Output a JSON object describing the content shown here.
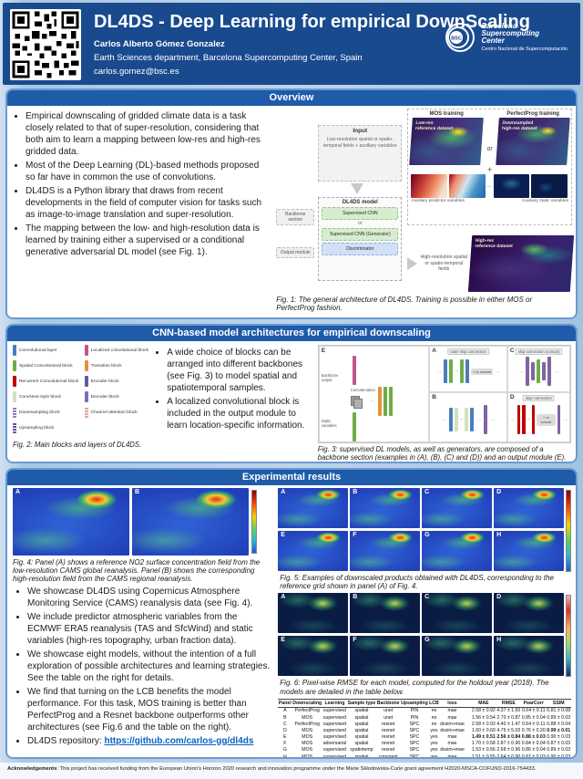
{
  "header": {
    "title": "DL4DS - Deep Learning for empirical DownScaling",
    "author": "Carlos Alberto Gómez Gonzalez",
    "affiliation": "Earth Sciences department, Barcelona Supercomputing Center, Spain",
    "email": "carlos.gomez@bsc.es",
    "logo": {
      "abbr": "BSC",
      "name_lines": "Barcelona\nSupercomputing\nCenter",
      "subtitle": "Centro Nacional de Supercomputación"
    }
  },
  "overview": {
    "title": "Overview",
    "bullets": [
      "Empirical downscaling of gridded climate data is a task closely related to that of super-resolution, considering that both aim to learn a mapping between low-res and high-res gridded data.",
      "Most of the Deep Learning (DL)-based methods proposed so far have in common the use of convolutions.",
      "DL4DS is a Python library that draws from recent developments in the field of computer vision for tasks such as image-to-image translation and super-resolution.",
      "The mapping between the low- and high-resolution data is learned by training either a supervised or a conditional generative adversarial DL model (see Fig. 1)."
    ],
    "fig1": {
      "mos_label": "MOS training",
      "pp_label": "PerfectProg training",
      "or": "or",
      "plus": "+",
      "dots": "...",
      "lowres_overlay": "Low-res reference dataset",
      "downsampled_overlay": "Downsampled high-res dataset",
      "aux_predictor": "Auxiliary predictor variables",
      "aux_static": "Auxiliary static variables",
      "input_title": "Input",
      "input_body": "Low-resolution spatial or spatio-temporal fields + auxiliary variables",
      "model_title": "DL4DS model",
      "block1": "Supervised CNN",
      "or2": "or",
      "block2": "Supervised CNN (Generator)",
      "block3": "Discriminator",
      "backbone_label": "Backbone section",
      "output_label": "Output module",
      "highres_fields": "High-resolution spatial or spatio-temporal fields",
      "highres_overlay": "High-res reference dataset",
      "caption": "Fig. 1: The general architecture of DL4DS. Training is possible in either MOS or PerfectProg fashion."
    }
  },
  "cnn": {
    "title": "CNN-based model architectures for empirical downscaling",
    "legend_left": [
      {
        "label": "Convolutional layer",
        "color": "#4a7ebb",
        "striped": false
      },
      {
        "label": "Spatial Convolutional block",
        "color": "#6fad47",
        "striped": false
      },
      {
        "label": "Recurrent Convolutional block",
        "color": "#c00000",
        "striped": false
      },
      {
        "label": "ConvNext-style block",
        "color": "#cfe2c0",
        "striped": false
      },
      {
        "label": "Downsampling block",
        "color": "#8e7cc3",
        "striped": true
      },
      {
        "label": "Upsampling block",
        "color": "#674ea7",
        "striped": true
      }
    ],
    "legend_right": [
      {
        "label": "Localized convolutional block",
        "color": "#c2548c",
        "striped": false
      },
      {
        "label": "Transition block",
        "color": "#e69138",
        "striped": false
      },
      {
        "label": "Encoder block",
        "color": "#5b5ea6",
        "striped": false
      },
      {
        "label": "Decoder block",
        "color": "#7a6fbe",
        "striped": false
      },
      {
        "label": "Channel attention block",
        "color": "#e8a0a0",
        "striped": true
      }
    ],
    "fig2_caption": "Fig. 2: Main blocks and layers of DL4DS.",
    "bullets": [
      "A wide choice of blocks can be arranged into different backbones (see Fig. 3) to model spatial and spatiotemporal samples.",
      "A localized convolutional block is included in the output module to learn location-specific information."
    ],
    "fig3": {
      "letters": [
        "A",
        "B",
        "C",
        "D",
        "E"
      ],
      "outer_skip": "outer skip connection",
      "skip_concat": "skip connection (concat)",
      "skip": "skip connection",
      "plus_or_concat": "+ or concat",
      "backbone_output": "Backbone output",
      "static_variables": "Static variables",
      "concatenation": "Concatenation",
      "caption": "Fig. 3: supervised DL models, as well as generators, are composed of a backbone section (examples in (A), (B), (C) and (D)) and an output module (E)."
    }
  },
  "experimental": {
    "title": "Experimental results",
    "fig4": {
      "panels": [
        "A",
        "B"
      ],
      "caption": "Fig. 4: Panel (A) shows a reference NO2 surface concentration field from the low-resolution CAMS global reanalysis. Panel (B) shows the corresponding high-resolution field from the CAMS regional reanalysis."
    },
    "bullets": [
      "We showcase DL4DS using Copernicus Atmosphere Monitoring Service (CAMS) reanalysis data (see Fig. 4).",
      "We include predictor atmospheric variables from the ECMWF ERA5 reanalysis (TAS and SfcWind) and static variables (high-res topography, urban fraction data).",
      "We showcase eight models, without the intention of a full exploration of possible architectures and learning strategies. See the table on the right for details.",
      "We find that turning on the LCB benefits the model performance. For this task, MOS training is better than PerfectProg and a Resnet backbone outperforms other architectures (see Fig.6 and the table on the right)."
    ],
    "repo_label": "DL4DS repository: ",
    "repo_url": "https://github.com/carlos-gg/dl4ds",
    "fig5": {
      "panels": [
        "A",
        "B",
        "C",
        "D",
        "E",
        "F",
        "G",
        "H"
      ],
      "caption": "Fig. 5: Examples of downscaled products obtained with DL4DS, corresponding to the reference grid shown in panel (A) of Fig. 4."
    },
    "fig6": {
      "panels": [
        "A",
        "B",
        "C",
        "D",
        "E",
        "F",
        "G",
        "H"
      ],
      "caption": "Fig. 6: Pixel-wise RMSE for each model, computed for the holdout year (2018). The models are detailed in the table below."
    },
    "table": {
      "columns": [
        "Panel",
        "Downscaling",
        "Learning",
        "Sample type",
        "Backbone",
        "Upsampling",
        "LCB",
        "loss",
        "MAE",
        "RMSE",
        "PearCorr",
        "SSIM"
      ],
      "rows": [
        [
          "A",
          "PerfectProg",
          "supervised",
          "spatial",
          "unet",
          "PIN",
          "no",
          "mae",
          "2.58 ± 0.92",
          "4.37 ± 1.50",
          "0.64 ± 0.11",
          "0.81 ± 0.08"
        ],
        [
          "B",
          "MOS",
          "supervised",
          "spatial",
          "unet",
          "PIN",
          "no",
          "mae",
          "1.56 ± 0.54",
          "2.70 ± 0.87",
          "0.85 ± 0.04",
          "0.89 ± 0.03"
        ],
        [
          "C",
          "PerfectProg",
          "supervised",
          "spatial",
          "resnet",
          "SPC",
          "no",
          "dssim+mae",
          "2.58 ± 0.93",
          "4.40 ± 1.47",
          "0.64 ± 0.11",
          "0.88 ± 0.04"
        ],
        [
          "D",
          "MOS",
          "supervised",
          "spatial",
          "resnet",
          "SPC",
          "yes",
          "dssim+mae",
          "1.60 ± 0.60",
          "4.75 ± 5.03",
          "0.76 ± 0.20",
          "0.99 ± 0.01"
        ],
        [
          "E",
          "MOS",
          "supervised",
          "spatial",
          "resnet",
          "SPC",
          "yes",
          "mae",
          "1.49 ± 0.51",
          "2.56 ± 0.84",
          "0.88 ± 0.03",
          "0.90 ± 0.03"
        ],
        [
          "F",
          "MOS",
          "adversarial",
          "spatial",
          "resnet",
          "SPC",
          "yes",
          "mae",
          "1.70 ± 0.58",
          "2.87 ± 0.90",
          "0.84 ± 0.04",
          "0.87 ± 0.03"
        ],
        [
          "G",
          "MOS",
          "supervised",
          "spatiotemp",
          "resnet",
          "SPC",
          "yes",
          "dssim+mae",
          "1.53 ± 0.56",
          "2.68 ± 0.96",
          "0.86 ± 0.04",
          "0.89 ± 0.03"
        ],
        [
          "H",
          "MOS",
          "supervised",
          "spatial",
          "convnext",
          "SPC",
          "yes",
          "mae",
          "1.51 ± 0.55",
          "2.64 ± 0.90",
          "0.87 ± 0.03",
          "0.90 ± 0.03"
        ]
      ],
      "bold_cells": [
        [
          3,
          11
        ],
        [
          4,
          8
        ],
        [
          4,
          9
        ],
        [
          4,
          10
        ]
      ]
    }
  },
  "footer": {
    "bold": "Acknowledgements",
    "text": ": This project has received funding from the European Union's Horizon 2020 research and innovation programme under the Marie Skłodowska-Curie grant agreement H2020-MSCA-COFUND-2016-754433."
  },
  "colors": {
    "header_bg": "#1a4a8e",
    "section_bar": "#1e5ba9",
    "panel_border": "#6b9bd2",
    "link": "#0563c1"
  }
}
